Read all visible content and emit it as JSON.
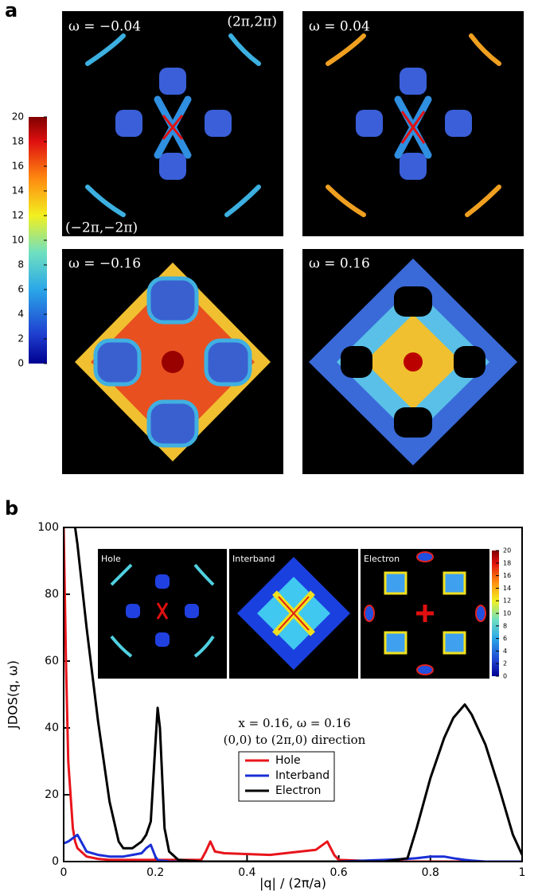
{
  "chart_data": [
    {
      "type": "heatmap",
      "panel_label": "a",
      "panels": [
        {
          "label": "ω = −0.04"
        },
        {
          "label": "ω = 0.04"
        },
        {
          "label": "ω = −0.16"
        },
        {
          "label": "ω = 0.16"
        }
      ],
      "corner_labels": [
        "(2π,2π)",
        "(−2π,−2π)"
      ],
      "colorbar": {
        "ylim": [
          0,
          20
        ],
        "yticks": [
          0,
          2,
          4,
          6,
          8,
          10,
          12,
          14,
          16,
          18,
          20
        ]
      }
    },
    {
      "type": "line",
      "panel_label": "b",
      "xlabel": "|q| / (2π/a)",
      "ylabel": "JDOS(q, ω)",
      "annotations": [
        "x = 0.16,  ω = 0.16",
        "(0,0) to (2π,0) direction"
      ],
      "x": [
        0,
        0.005,
        0.01,
        0.02,
        0.025,
        0.03,
        0.05,
        0.075,
        0.1,
        0.12,
        0.13,
        0.15,
        0.17,
        0.18,
        0.19,
        0.2,
        0.205,
        0.21,
        0.22,
        0.23,
        0.25,
        0.3,
        0.31,
        0.32,
        0.33,
        0.35,
        0.45,
        0.55,
        0.575,
        0.59,
        0.6,
        0.7,
        0.75,
        0.77,
        0.8,
        0.83,
        0.85,
        0.875,
        0.89,
        0.92,
        0.95,
        0.98,
        1
      ],
      "series": [
        {
          "name": "Hole",
          "color": "#e8141b",
          "values": [
            100,
            60,
            30,
            10,
            6,
            4,
            1.5,
            0.8,
            0.5,
            0.5,
            0.5,
            0.5,
            0.5,
            0.5,
            0.5,
            0.5,
            0.5,
            0.5,
            0.5,
            0.5,
            0.5,
            0.5,
            3,
            6,
            3,
            2.5,
            2,
            3.5,
            6,
            2,
            0.5,
            0,
            0,
            0,
            0,
            0,
            0,
            0,
            0,
            0,
            0,
            0,
            0
          ]
        },
        {
          "name": "Interband",
          "color": "#1a2fd6",
          "values": [
            5.5,
            5.7,
            6,
            7,
            7.5,
            8,
            3,
            2,
            1.5,
            1.5,
            1.5,
            2,
            2.5,
            4,
            5,
            1.5,
            0.5,
            0.3,
            0.2,
            0,
            0,
            0,
            0,
            0,
            0,
            0,
            0,
            0,
            0,
            0,
            0,
            0.5,
            0.8,
            1,
            1.5,
            1.5,
            1,
            0.5,
            0.3,
            0,
            0,
            0,
            0
          ]
        },
        {
          "name": "Electron",
          "color": "#000000",
          "values": [
            null,
            null,
            null,
            null,
            100,
            95,
            70,
            42,
            18,
            6,
            4,
            4,
            6,
            8,
            12,
            35,
            46,
            40,
            10,
            3,
            0.5,
            0,
            0,
            0,
            0,
            0,
            0,
            0,
            0,
            0,
            0,
            0,
            1,
            10,
            25,
            37,
            43,
            47,
            44,
            35,
            22,
            8,
            2
          ]
        }
      ],
      "xlim": [
        0,
        1
      ],
      "xticks": [
        0,
        0.2,
        0.4,
        0.6,
        0.8,
        1
      ],
      "ylim": [
        0,
        100
      ],
      "yticks": [
        0,
        20,
        40,
        60,
        80,
        100
      ],
      "insets": {
        "labels": [
          "Hole",
          "Interband",
          "Electron"
        ],
        "colorbar": {
          "ylim": [
            0,
            20
          ],
          "yticks": [
            0,
            2,
            4,
            6,
            8,
            10,
            12,
            14,
            16,
            18,
            20
          ]
        }
      }
    }
  ]
}
